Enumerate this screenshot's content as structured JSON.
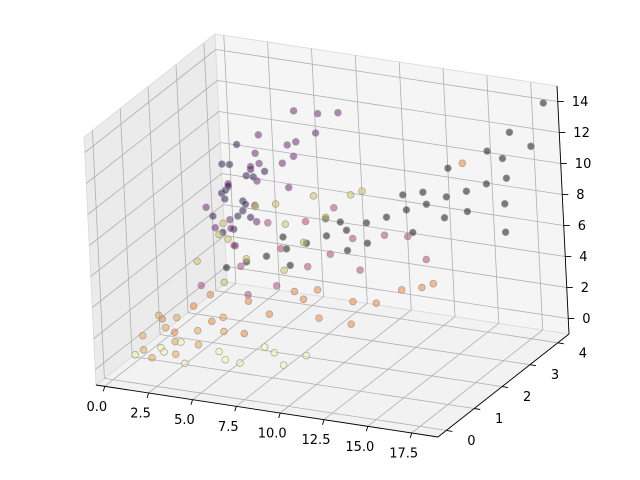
{
  "chart_data": {
    "type": "scatter",
    "projection": "3d",
    "title": "",
    "xlabel": "",
    "ylabel": "",
    "zlabel": "",
    "xlim": [
      -0.5,
      19
    ],
    "ylim": [
      -0.3,
      4.4
    ],
    "zlim": [
      -1,
      15
    ],
    "x_ticks": [
      0.0,
      2.5,
      5.0,
      7.5,
      10.0,
      12.5,
      15.0,
      17.5
    ],
    "x_tick_labels": [
      "0.0",
      "2.5",
      "5.0",
      "7.5",
      "10.0",
      "12.5",
      "15.0",
      "17.5"
    ],
    "y_ticks": [
      0,
      1,
      2,
      3,
      4
    ],
    "y_tick_labels": [
      "0",
      "1",
      "2",
      "3",
      "4"
    ],
    "z_ticks": [
      0,
      2,
      4,
      6,
      8,
      10,
      12,
      14
    ],
    "z_tick_labels": [
      "0",
      "2",
      "4",
      "6",
      "8",
      "10",
      "12",
      "14"
    ],
    "grid": true,
    "legend": "none",
    "marker_edge_color": "#999999",
    "marker_alpha": 0.5,
    "series": [
      {
        "color": "#1f0c48",
        "points": [
          [
            0.2,
            3.6,
            4.5
          ],
          [
            0.5,
            3.9,
            5.8
          ],
          [
            0.8,
            4.1,
            3.9
          ],
          [
            1.0,
            3.7,
            6.4
          ],
          [
            1.3,
            4.0,
            5.1
          ],
          [
            0.3,
            4.2,
            7.0
          ],
          [
            1.6,
            3.8,
            4.8
          ],
          [
            0.6,
            4.3,
            8.2
          ],
          [
            1.1,
            3.5,
            5.9
          ],
          [
            1.8,
            4.1,
            6.6
          ],
          [
            0.4,
            3.8,
            3.2
          ],
          [
            2.0,
            3.9,
            7.4
          ],
          [
            0.9,
            4.4,
            6.1
          ],
          [
            1.4,
            3.6,
            2.8
          ],
          [
            0.1,
            4.0,
            5.4
          ],
          [
            2.3,
            4.2,
            6.9
          ],
          [
            1.7,
            3.4,
            4.2
          ],
          [
            0.7,
            3.7,
            7.8
          ],
          [
            1.2,
            4.3,
            3.6
          ],
          [
            2.1,
            3.6,
            5.6
          ]
        ]
      },
      {
        "color": "#6a176e",
        "points": [
          [
            1.0,
            2.9,
            6.2
          ],
          [
            2.0,
            3.1,
            7.5
          ],
          [
            3.0,
            3.3,
            8.6
          ],
          [
            4.0,
            3.0,
            9.4
          ],
          [
            5.0,
            3.4,
            10.2
          ],
          [
            2.5,
            2.8,
            5.8
          ],
          [
            3.5,
            3.2,
            7.9
          ],
          [
            4.5,
            3.5,
            8.8
          ],
          [
            6.0,
            3.1,
            11.0
          ],
          [
            1.5,
            3.4,
            7.1
          ],
          [
            2.8,
            3.6,
            9.0
          ],
          [
            3.8,
            2.9,
            6.8
          ],
          [
            5.5,
            3.3,
            9.7
          ],
          [
            7.0,
            3.2,
            11.6
          ],
          [
            6.5,
            3.6,
            12.2
          ],
          [
            2.2,
            3.0,
            4.9
          ],
          [
            4.2,
            2.7,
            6.1
          ],
          [
            3.2,
            3.5,
            10.4
          ],
          [
            5.8,
            2.9,
            8.3
          ],
          [
            1.8,
            2.7,
            5.3
          ],
          [
            4.8,
            3.8,
            11.8
          ],
          [
            8.0,
            3.4,
            12.8
          ]
        ]
      },
      {
        "color": "#d1c04a",
        "points": [
          [
            1.5,
            2.2,
            3.8
          ],
          [
            3.0,
            2.4,
            5.2
          ],
          [
            4.5,
            2.1,
            4.6
          ],
          [
            6.0,
            2.6,
            6.4
          ],
          [
            7.5,
            2.3,
            5.9
          ],
          [
            2.0,
            2.7,
            4.9
          ],
          [
            5.0,
            2.9,
            7.1
          ],
          [
            8.5,
            2.5,
            7.4
          ],
          [
            3.5,
            1.9,
            3.2
          ],
          [
            9.5,
            2.8,
            8.6
          ],
          [
            6.8,
            2.0,
            4.4
          ],
          [
            2.6,
            2.5,
            6.0
          ],
          [
            10.5,
            2.6,
            9.3
          ],
          [
            4.0,
            2.8,
            6.9
          ],
          [
            7.2,
            2.9,
            8.0
          ]
        ]
      },
      {
        "color": "#b5367a",
        "points": [
          [
            2.0,
            2.0,
            2.6
          ],
          [
            4.0,
            2.2,
            3.9
          ],
          [
            6.0,
            2.4,
            5.1
          ],
          [
            8.0,
            2.1,
            4.7
          ],
          [
            10.0,
            2.5,
            6.3
          ],
          [
            3.0,
            2.6,
            4.5
          ],
          [
            5.0,
            1.8,
            2.8
          ],
          [
            7.0,
            2.7,
            6.6
          ],
          [
            9.0,
            2.3,
            5.4
          ],
          [
            11.0,
            2.1,
            5.0
          ],
          [
            12.0,
            2.4,
            7.0
          ],
          [
            6.5,
            1.9,
            3.5
          ],
          [
            4.5,
            2.9,
            5.8
          ],
          [
            13.0,
            2.6,
            6.8
          ],
          [
            8.5,
            2.8,
            7.6
          ],
          [
            14.5,
            2.3,
            6.0
          ]
        ]
      },
      {
        "color": "#ef7b2b",
        "points": [
          [
            1.0,
            1.2,
            1.4
          ],
          [
            2.5,
            1.4,
            2.2
          ],
          [
            4.0,
            1.1,
            1.9
          ],
          [
            5.5,
            1.5,
            2.9
          ],
          [
            7.0,
            1.3,
            2.6
          ],
          [
            8.5,
            1.6,
            3.4
          ],
          [
            10.0,
            1.2,
            3.0
          ],
          [
            11.5,
            1.5,
            3.9
          ],
          [
            13.0,
            1.4,
            4.2
          ],
          [
            3.0,
            1.7,
            2.6
          ],
          [
            6.0,
            1.0,
            1.6
          ],
          [
            9.0,
            1.8,
            3.8
          ],
          [
            12.0,
            1.1,
            3.1
          ],
          [
            14.0,
            1.7,
            4.8
          ],
          [
            2.0,
            1.0,
            1.0
          ],
          [
            7.5,
            1.9,
            3.3
          ],
          [
            15.5,
            1.5,
            5.5
          ],
          [
            16.5,
            1.3,
            6.2
          ],
          [
            18.0,
            1.6,
            13.8
          ]
        ]
      },
      {
        "color": "#e8a23b",
        "points": [
          [
            0.5,
            0.8,
            0.8
          ],
          [
            1.5,
            1.0,
            1.2
          ],
          [
            2.5,
            0.7,
            0.9
          ],
          [
            3.5,
            0.9,
            1.5
          ],
          [
            1.0,
            0.5,
            0.4
          ],
          [
            2.0,
            1.1,
            1.8
          ],
          [
            4.0,
            0.6,
            1.1
          ],
          [
            0.8,
            1.2,
            1.6
          ],
          [
            3.0,
            0.4,
            0.6
          ],
          [
            5.0,
            0.9,
            1.7
          ],
          [
            1.8,
            0.3,
            0.3
          ],
          [
            4.5,
            1.2,
            2.1
          ]
        ]
      },
      {
        "color": "#f6f6a2",
        "points": [
          [
            1.0,
            0.2,
            0.5
          ],
          [
            2.5,
            0.3,
            0.8
          ],
          [
            4.0,
            0.1,
            0.6
          ],
          [
            5.5,
            0.4,
            1.2
          ],
          [
            7.0,
            0.2,
            1.0
          ],
          [
            8.5,
            0.5,
            1.5
          ],
          [
            3.0,
            0.6,
            1.1
          ],
          [
            6.0,
            0.3,
            0.9
          ],
          [
            9.5,
            0.2,
            1.3
          ],
          [
            10.5,
            0.4,
            1.8
          ],
          [
            2.0,
            0.5,
            0.7
          ],
          [
            7.8,
            0.6,
            1.6
          ]
        ]
      },
      {
        "color": "#000000",
        "points": [
          [
            3.0,
            2.3,
            3.5
          ],
          [
            4.0,
            2.4,
            3.9
          ],
          [
            5.0,
            2.5,
            4.3
          ],
          [
            6.0,
            2.6,
            4.8
          ],
          [
            7.0,
            2.7,
            5.2
          ],
          [
            8.0,
            2.8,
            5.7
          ],
          [
            9.0,
            2.9,
            6.1
          ],
          [
            10.0,
            3.0,
            6.6
          ],
          [
            11.0,
            3.1,
            7.0
          ],
          [
            12.0,
            3.2,
            7.5
          ],
          [
            13.0,
            3.3,
            7.9
          ],
          [
            14.0,
            3.4,
            8.4
          ],
          [
            15.0,
            3.5,
            8.8
          ],
          [
            16.0,
            3.6,
            9.3
          ],
          [
            17.0,
            3.7,
            9.7
          ],
          [
            6.5,
            2.4,
            4.1
          ],
          [
            8.5,
            3.0,
            6.4
          ],
          [
            10.5,
            2.7,
            5.8
          ],
          [
            12.5,
            3.5,
            8.3
          ],
          [
            14.5,
            3.0,
            7.7
          ],
          [
            16.5,
            3.9,
            10.6
          ],
          [
            11.5,
            3.4,
            8.1
          ],
          [
            9.5,
            2.6,
            5.3
          ],
          [
            13.5,
            3.8,
            9.6
          ],
          [
            15.5,
            3.2,
            8.0
          ],
          [
            7.5,
            3.1,
            6.3
          ],
          [
            18.0,
            4.0,
            11.5
          ],
          [
            17.5,
            3.3,
            8.7
          ],
          [
            18.5,
            4.2,
            14.1
          ],
          [
            16.8,
            4.0,
            12.2
          ],
          [
            15.8,
            3.8,
            11.1
          ],
          [
            17.8,
            3.1,
            7.2
          ],
          [
            12.8,
            2.9,
            6.6
          ],
          [
            5.5,
            2.8,
            5.2
          ]
        ]
      }
    ]
  }
}
